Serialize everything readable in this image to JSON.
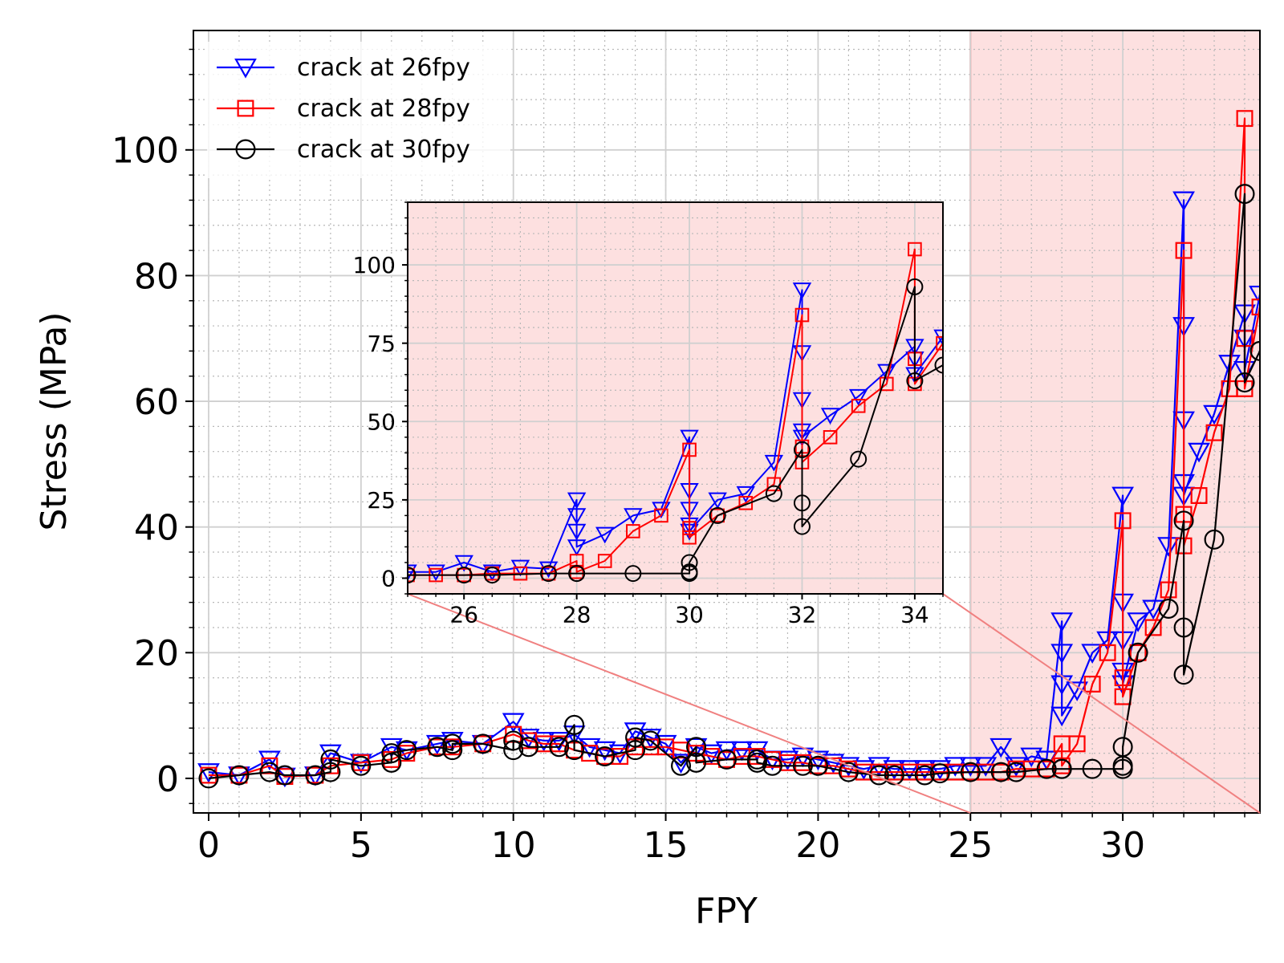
{
  "chart_data": {
    "type": "line",
    "xlabel": "FPY",
    "ylabel": "Stress (MPa)",
    "xlim": [
      -0.5,
      34.5
    ],
    "ylim": [
      -5.5,
      119
    ],
    "xticks": [
      0,
      5,
      10,
      15,
      20,
      25,
      30
    ],
    "yticks": [
      0,
      20,
      40,
      60,
      80,
      100
    ],
    "grid": true,
    "legend": "top-left",
    "highlight_region": {
      "x_from": 25,
      "x_to": 34.5,
      "color": "#fde0e0",
      "edge_color": "#f08080"
    },
    "series": [
      {
        "name": "crack at 26fpy",
        "color": "#0000ff",
        "marker": "triangle-down",
        "x": [
          0,
          1,
          2,
          2.5,
          3.5,
          4,
          5,
          6,
          6.5,
          7.5,
          8,
          9,
          10,
          10.5,
          11,
          11.5,
          12,
          12.5,
          13,
          13.5,
          14,
          14.5,
          15,
          15.5,
          16,
          16.5,
          17,
          17.5,
          18,
          18.5,
          19,
          19.5,
          20,
          20.5,
          21,
          21.5,
          22,
          22.5,
          23,
          23.5,
          24,
          24.5,
          25,
          25.5,
          26,
          26.5,
          27,
          27.5,
          28,
          28,
          28,
          28,
          28.5,
          29,
          29.5,
          30,
          30,
          30,
          30,
          30,
          30.5,
          31,
          31.5,
          32,
          32,
          32,
          32,
          32,
          32.5,
          33,
          33.5,
          34,
          34,
          34,
          34.5
        ],
        "y": [
          1,
          0.5,
          3,
          0.3,
          0.5,
          4,
          2.5,
          5,
          4.5,
          5.5,
          6,
          5.5,
          9,
          6.5,
          6,
          6,
          7,
          5,
          4.5,
          4,
          7.5,
          6.5,
          5.5,
          2.5,
          5,
          4,
          4.5,
          4.5,
          4.5,
          3,
          3,
          3.5,
          3,
          2.5,
          2,
          1.5,
          2,
          1.5,
          1.5,
          1.5,
          1.5,
          2,
          2,
          2,
          5,
          2,
          3.5,
          3,
          25,
          20,
          15,
          10,
          14,
          20,
          22,
          45,
          28,
          22,
          17,
          15,
          25,
          27,
          37,
          92,
          72,
          57,
          47,
          45,
          52,
          58,
          66,
          74,
          70,
          65,
          77
        ]
      },
      {
        "name": "crack at 28fpy",
        "color": "#ff0000",
        "marker": "square",
        "x": [
          0,
          1,
          2,
          2.5,
          3.5,
          4,
          5,
          6,
          6.5,
          7.5,
          8,
          9,
          10,
          10.5,
          11,
          11.5,
          12,
          12.5,
          13,
          13.5,
          14,
          14.5,
          15,
          15.5,
          16,
          16.5,
          17,
          17.5,
          18,
          18.5,
          19,
          19.5,
          20,
          20.5,
          21,
          21.5,
          22,
          22.5,
          23,
          23.5,
          24,
          24.5,
          25,
          25.5,
          26,
          26.5,
          27,
          27.5,
          28,
          28,
          28.5,
          29,
          29.5,
          30,
          30,
          30,
          30.5,
          31,
          31.5,
          32,
          32,
          32,
          32.5,
          33,
          33.5,
          34,
          34,
          34,
          34.5
        ],
        "y": [
          0.5,
          0.5,
          2,
          0.3,
          0.5,
          2,
          2.5,
          3,
          4,
          5,
          5,
          5.5,
          7,
          6,
          5.5,
          5.5,
          4.5,
          4,
          3.5,
          3.5,
          5,
          5,
          5,
          4.5,
          4,
          3.5,
          3,
          3.5,
          3.5,
          3,
          2.5,
          2.5,
          2,
          2,
          1.5,
          1,
          1,
          1,
          1,
          1,
          1,
          1,
          1,
          1,
          1,
          1.5,
          1.5,
          1.5,
          5.5,
          2,
          5.5,
          15,
          20,
          41,
          16,
          13,
          20,
          24,
          30,
          84,
          42,
          37,
          45,
          55,
          62,
          105,
          70,
          62,
          75
        ]
      },
      {
        "name": "crack at 30fpy",
        "color": "#000000",
        "marker": "circle",
        "x": [
          0,
          1,
          2,
          2.5,
          3.5,
          4,
          4,
          5,
          6,
          6,
          6.5,
          7.5,
          8,
          8,
          9,
          10,
          10,
          10.5,
          11.5,
          12,
          12,
          13,
          14,
          14,
          14.5,
          15.5,
          16,
          16,
          17,
          18,
          18,
          18.5,
          19.5,
          20,
          21,
          22,
          22.5,
          23.5,
          24,
          25,
          26,
          26.5,
          27.5,
          28,
          28,
          29,
          30,
          30,
          30,
          30.5,
          31.5,
          32,
          32,
          32,
          33,
          34,
          34,
          34.5
        ],
        "y": [
          0,
          0.5,
          1,
          0.5,
          0.5,
          1,
          3,
          2,
          2.5,
          4,
          4.5,
          5,
          4.5,
          5.5,
          5.5,
          4.5,
          6,
          5,
          5,
          8.5,
          4.5,
          3.5,
          4.5,
          6.5,
          6,
          2,
          5,
          2.5,
          3,
          3,
          2.5,
          2,
          2,
          2,
          1,
          0.5,
          0.5,
          0.5,
          0.8,
          1,
          1,
          1,
          1.5,
          1.5,
          1.5,
          1.5,
          1.5,
          2,
          5,
          20,
          27,
          41,
          24,
          16.5,
          38,
          93,
          63,
          68
        ]
      }
    ]
  },
  "inset": {
    "xlim": [
      25,
      34.5
    ],
    "ylim": [
      -5,
      120
    ],
    "xticks": [
      26,
      28,
      30,
      32,
      34
    ],
    "yticks": [
      0,
      25,
      50,
      75,
      100
    ]
  }
}
